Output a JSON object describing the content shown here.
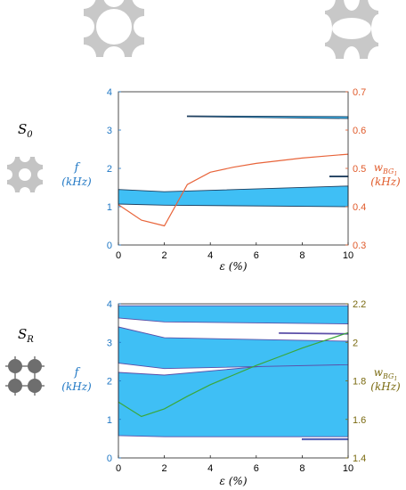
{
  "charts": [
    {
      "row_label": "S",
      "row_sub": "0",
      "left_axis": {
        "symbol": "f",
        "unit": "(kHz)",
        "range": [
          0,
          4
        ],
        "ticks": [
          "0",
          "1",
          "2",
          "3",
          "4"
        ],
        "color": "#1f77c4"
      },
      "right_axis": {
        "symbol": "w",
        "sub": "BG",
        "subsub": "1",
        "unit": "(kHz)",
        "range": [
          0.3,
          0.7
        ],
        "ticks": [
          "0.3",
          "0.4",
          "0.5",
          "0.6",
          "0.7"
        ],
        "color": "#e05a2a"
      },
      "x_axis": {
        "label": "ε (%)",
        "range": [
          0,
          10
        ],
        "ticks": [
          "0",
          "2",
          "4",
          "6",
          "8",
          "10"
        ]
      },
      "fill_color": "#3fbff5",
      "line_color": "#e8643a"
    },
    {
      "row_label": "S",
      "row_sub": "R",
      "left_axis": {
        "symbol": "f",
        "unit": "(kHz)",
        "range": [
          0,
          4
        ],
        "ticks": [
          "0",
          "1",
          "2",
          "3",
          "4"
        ],
        "color": "#1f77c4"
      },
      "right_axis": {
        "symbol": "w",
        "sub": "BG",
        "subsub": "1",
        "unit": "(kHz)",
        "range": [
          1.4,
          2.2
        ],
        "ticks": [
          "1.4",
          "1.6",
          "1.8",
          "2",
          "2.2"
        ],
        "color": "#7a6a10"
      },
      "x_axis": {
        "label": "ε (%)",
        "range": [
          0,
          10
        ],
        "ticks": [
          "0",
          "2",
          "4",
          "6",
          "8",
          "10"
        ]
      },
      "fill_color": "#3fbff5",
      "line_color": "#3aa83a"
    }
  ],
  "chart_data": [
    {
      "type": "area",
      "bands": [
        {
          "x": [
            0,
            2,
            10
          ],
          "lower": [
            1.07,
            1.04,
            1.0
          ],
          "upper": [
            1.45,
            1.39,
            1.54
          ]
        },
        {
          "x": [
            3,
            10
          ],
          "lower": [
            3.35,
            3.3
          ],
          "upper": [
            3.37,
            3.35
          ]
        },
        {
          "x": [
            9.2,
            10
          ],
          "lower": [
            1.78,
            1.78
          ],
          "upper": [
            1.8,
            1.8
          ]
        }
      ],
      "line": {
        "x": [
          0,
          1,
          2,
          3,
          4,
          5,
          6,
          7,
          8,
          9,
          10
        ],
        "y": [
          0.405,
          0.365,
          0.35,
          0.458,
          0.49,
          0.503,
          0.513,
          0.52,
          0.527,
          0.532,
          0.537
        ]
      }
    },
    {
      "type": "area",
      "bands": [
        {
          "x": [
            0,
            2,
            10
          ],
          "lower": [
            0.58,
            0.55,
            0.55
          ],
          "upper": [
            2.22,
            2.15,
            2.58
          ]
        },
        {
          "x": [
            0,
            2,
            10
          ],
          "lower": [
            2.46,
            2.32,
            2.42
          ],
          "upper": [
            3.4,
            3.12,
            3.03
          ]
        },
        {
          "x": [
            0,
            2,
            10
          ],
          "lower": [
            3.63,
            3.53,
            3.48
          ],
          "upper": [
            3.95,
            3.95,
            3.95
          ]
        },
        {
          "x": [
            7,
            10
          ],
          "lower": [
            3.23,
            3.21
          ],
          "upper": [
            3.25,
            3.23
          ]
        },
        {
          "x": [
            8,
            10
          ],
          "lower": [
            0.47,
            0.47
          ],
          "upper": [
            0.5,
            0.5
          ]
        }
      ],
      "line": {
        "x": [
          0,
          1,
          2,
          3,
          4,
          5,
          6,
          7,
          8,
          9,
          10
        ],
        "y": [
          1.69,
          1.615,
          1.655,
          1.72,
          1.78,
          1.83,
          1.88,
          1.925,
          1.97,
          2.01,
          2.05
        ]
      }
    }
  ]
}
